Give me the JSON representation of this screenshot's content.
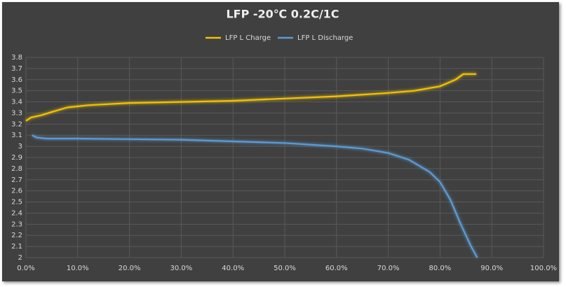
{
  "chart_data": {
    "type": "line",
    "title": "LFP -20℃ 0.2C/1C",
    "series": [
      {
        "name": "LFP L Charge",
        "color": "#f2c200",
        "x": [
          0,
          1,
          3,
          5,
          8,
          12,
          20,
          30,
          40,
          50,
          60,
          70,
          75,
          80,
          83,
          84.5,
          87
        ],
        "values": [
          3.23,
          3.26,
          3.28,
          3.31,
          3.35,
          3.37,
          3.39,
          3.4,
          3.41,
          3.43,
          3.45,
          3.48,
          3.5,
          3.54,
          3.6,
          3.65,
          3.65
        ]
      },
      {
        "name": "LFP L Discharge",
        "color": "#5b9bd5",
        "x": [
          1.2,
          2,
          4,
          10,
          20,
          30,
          40,
          50,
          60,
          65,
          70,
          74,
          78,
          80,
          82,
          84,
          86,
          87.2
        ],
        "values": [
          3.1,
          3.08,
          3.07,
          3.07,
          3.065,
          3.06,
          3.045,
          3.03,
          3.0,
          2.98,
          2.94,
          2.88,
          2.77,
          2.68,
          2.52,
          2.3,
          2.1,
          2.0
        ]
      }
    ],
    "xlim": [
      0,
      100
    ],
    "xticks": [
      {
        "value": 0,
        "label": "0.0%"
      },
      {
        "value": 10,
        "label": "10.0%"
      },
      {
        "value": 20,
        "label": "20.0%"
      },
      {
        "value": 30,
        "label": "30.0%"
      },
      {
        "value": 40,
        "label": "40.0%"
      },
      {
        "value": 50,
        "label": "50.0%"
      },
      {
        "value": 60,
        "label": "60.0%"
      },
      {
        "value": 70,
        "label": "70.0%"
      },
      {
        "value": 80,
        "label": "80.0%"
      },
      {
        "value": 90,
        "label": "90.0%"
      },
      {
        "value": 100,
        "label": "100.0%"
      }
    ],
    "ylim": [
      2,
      3.8
    ],
    "yticks": [
      2,
      2.1,
      2.2,
      2.3,
      2.4,
      2.5,
      2.6,
      2.7,
      2.8,
      2.9,
      3,
      3.1,
      3.2,
      3.3,
      3.4,
      3.5,
      3.6,
      3.7,
      3.8
    ],
    "grid": true,
    "legend": "top"
  }
}
